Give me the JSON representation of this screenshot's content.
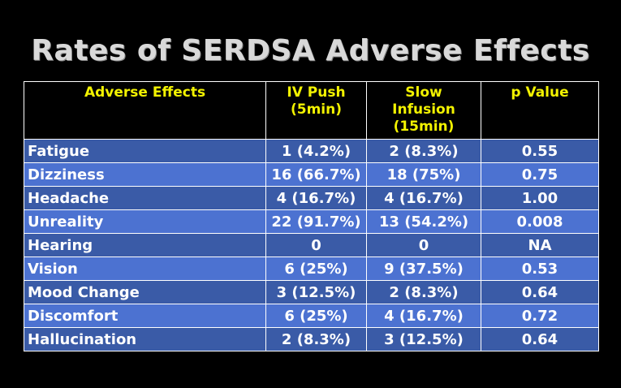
{
  "title": "Rates of SERDSA Adverse Effects",
  "table": {
    "headers": {
      "effect": "Adverse Effects",
      "iv_push": [
        "IV Push",
        "(5min)"
      ],
      "slow_infusion": [
        "Slow",
        "Infusion",
        "(15min)"
      ],
      "p_value": "p Value"
    },
    "rows": [
      {
        "effect": "Fatigue",
        "iv_push": "1 (4.2%)",
        "slow_infusion": "2 (8.3%)",
        "p_value": "0.55"
      },
      {
        "effect": "Dizziness",
        "iv_push": "16 (66.7%)",
        "slow_infusion": "18 (75%)",
        "p_value": "0.75"
      },
      {
        "effect": "Headache",
        "iv_push": "4 (16.7%)",
        "slow_infusion": "4 (16.7%)",
        "p_value": "1.00"
      },
      {
        "effect": "Unreality",
        "iv_push": "22 (91.7%)",
        "slow_infusion": "13 (54.2%)",
        "p_value": "0.008"
      },
      {
        "effect": "Hearing",
        "iv_push": "0",
        "slow_infusion": "0",
        "p_value": "NA"
      },
      {
        "effect": "Vision",
        "iv_push": "6 (25%)",
        "slow_infusion": "9 (37.5%)",
        "p_value": "0.53"
      },
      {
        "effect": "Mood Change",
        "iv_push": "3 (12.5%)",
        "slow_infusion": "2 (8.3%)",
        "p_value": "0.64"
      },
      {
        "effect": "Discomfort",
        "iv_push": "6 (25%)",
        "slow_infusion": "4 (16.7%)",
        "p_value": "0.72"
      },
      {
        "effect": "Hallucination",
        "iv_push": "2 (8.3%)",
        "slow_infusion": "3 (12.5%)",
        "p_value": "0.64"
      }
    ]
  },
  "colors": {
    "background": "#000000",
    "header_text": "#f2f200",
    "row_dark": "#3a5ba7",
    "row_light": "#4c72d1",
    "title_text": "#d9d9d9"
  }
}
